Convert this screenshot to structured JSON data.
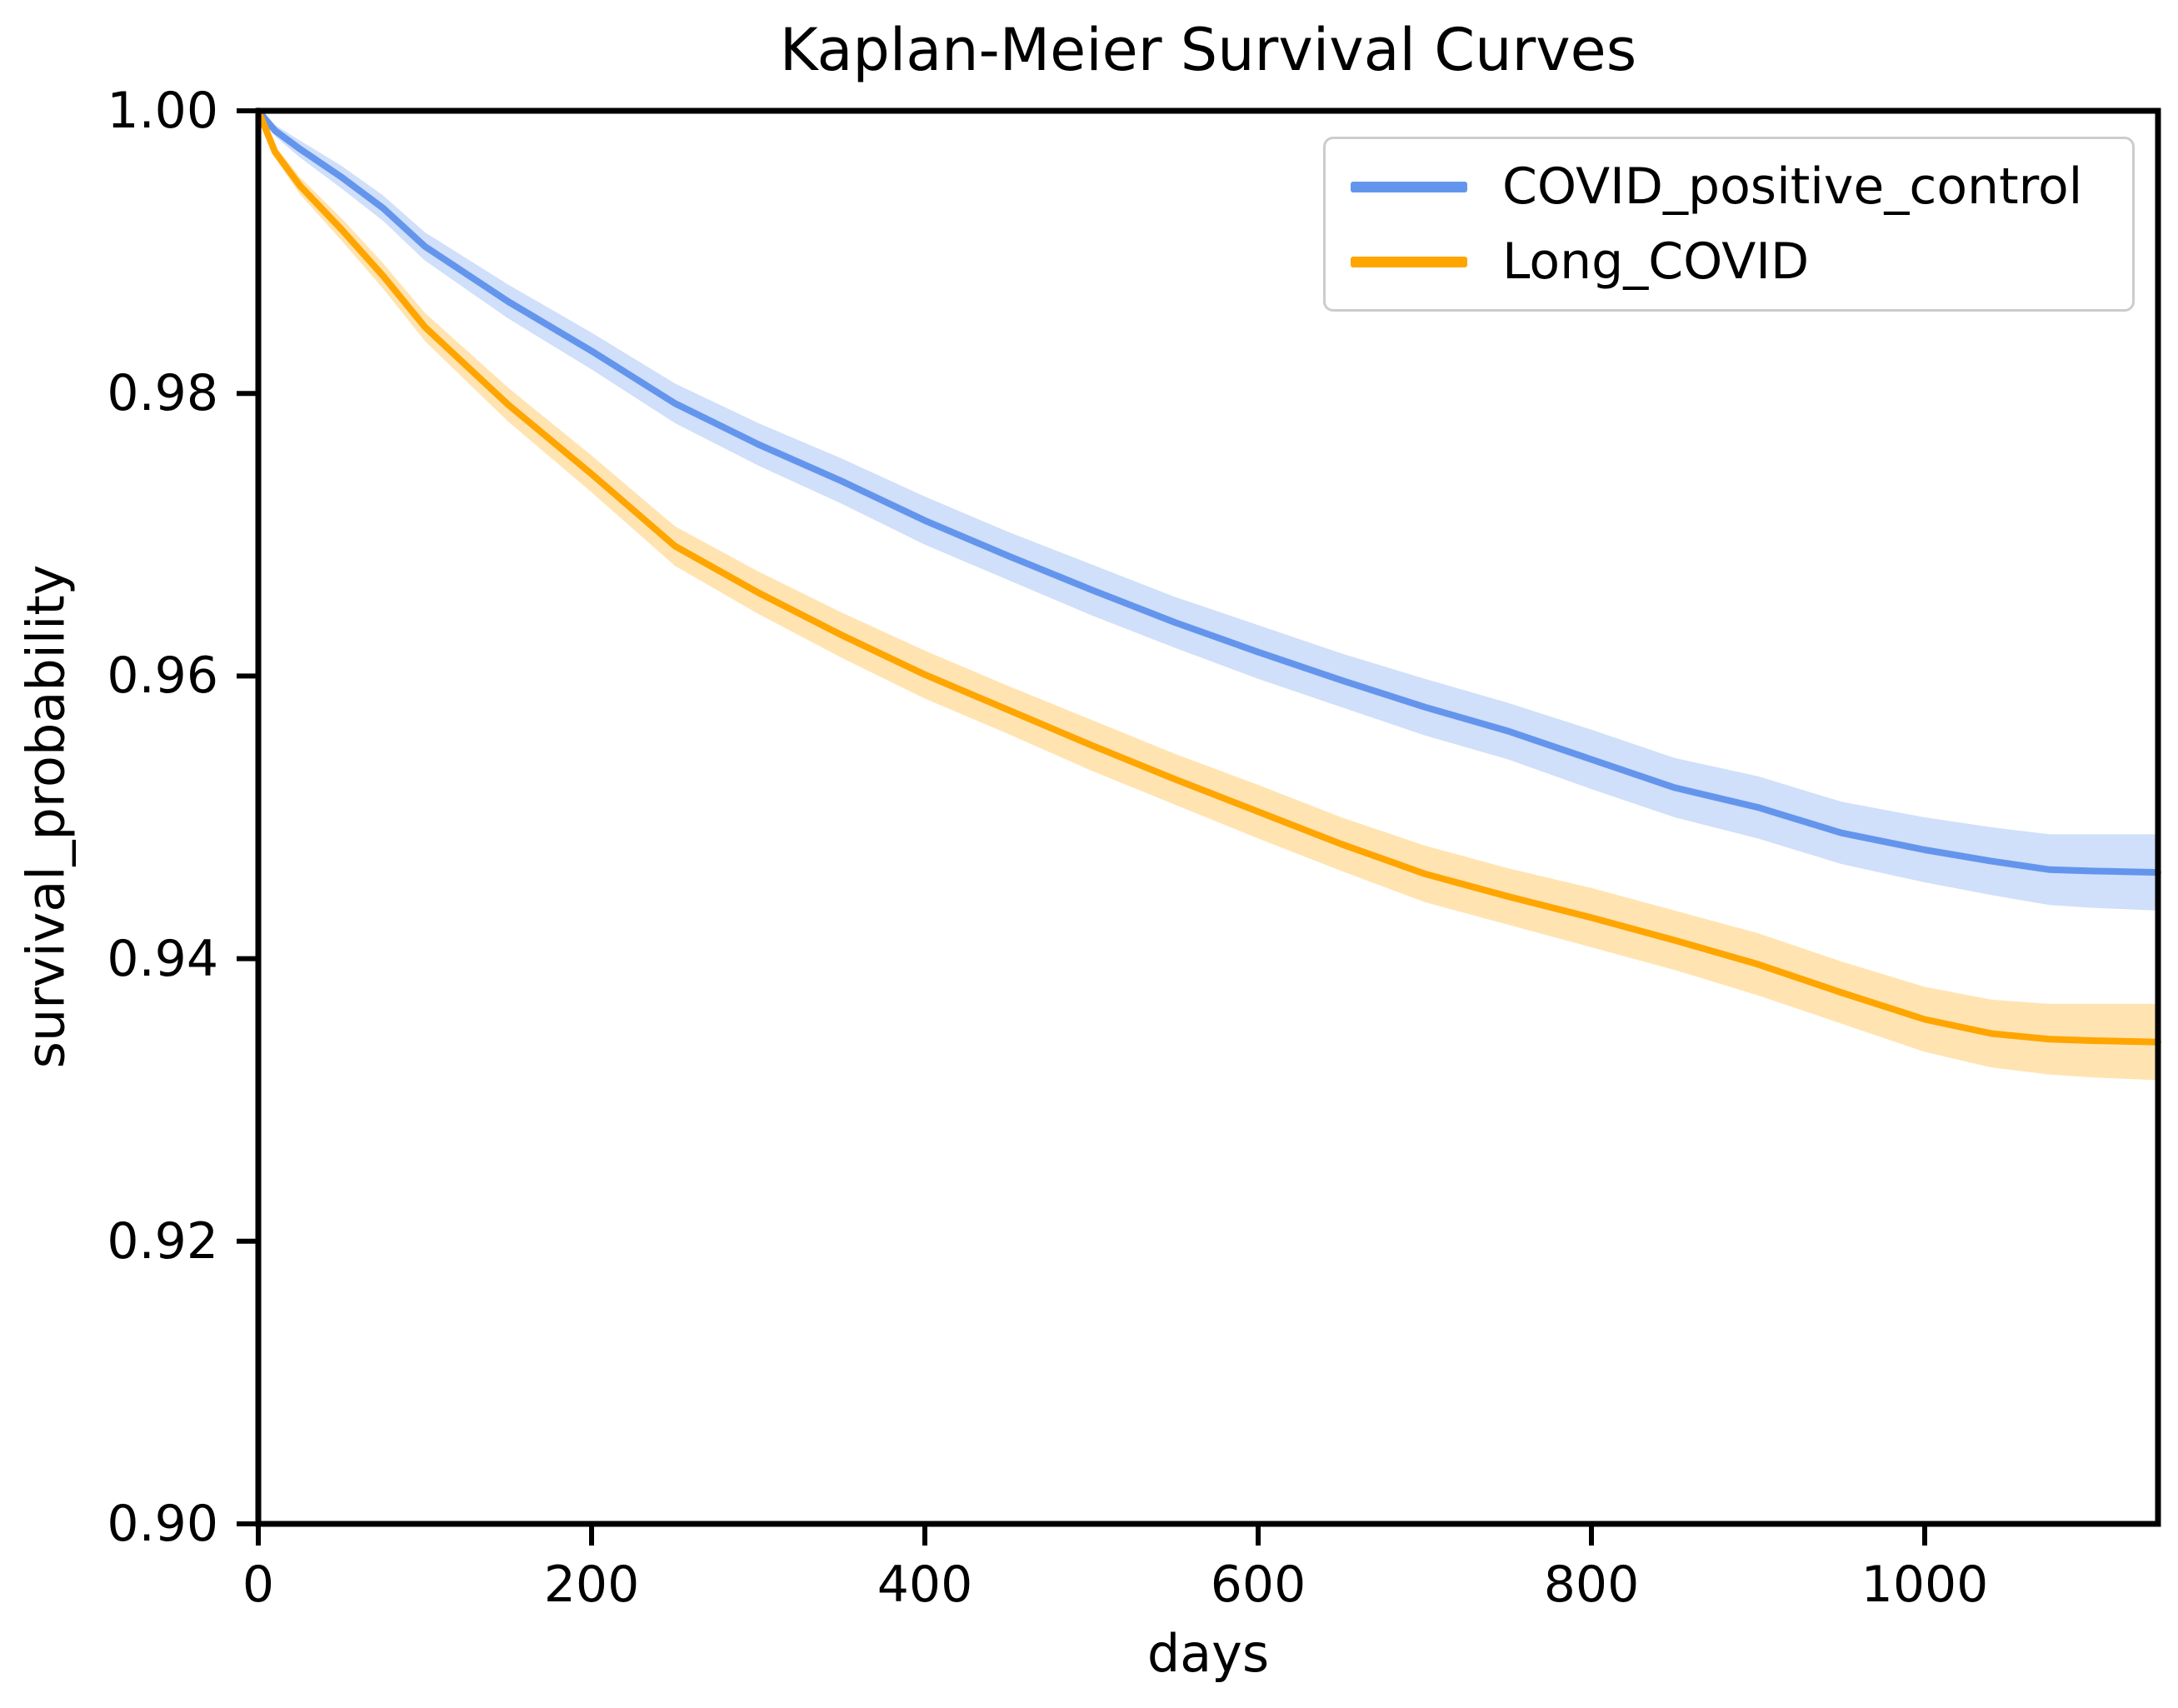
{
  "chart_data": {
    "type": "line",
    "title": "Kaplan-Meier Survival Curves",
    "xlabel": "days",
    "ylabel": "survival_probability",
    "xlim": [
      0,
      1140
    ],
    "ylim": [
      0.9,
      1.0
    ],
    "grid": false,
    "legend_position": "upper right",
    "xtick_values": [
      0,
      200,
      400,
      600,
      800,
      1000
    ],
    "xtick_labels": [
      "0",
      "200",
      "400",
      "600",
      "800",
      "1000"
    ],
    "ytick_values": [
      1.0,
      0.98,
      0.96,
      0.94,
      0.92,
      0.9
    ],
    "ytick_labels": [
      "1.00",
      "0.98",
      "0.96",
      "0.94",
      "0.92",
      "0.90"
    ],
    "axis_color": "#000000",
    "series": [
      {
        "name": "COVID_positive_control",
        "color": "#6495ED",
        "band_alpha": 0.3,
        "x": [
          0,
          10,
          25,
          50,
          75,
          100,
          150,
          200,
          250,
          300,
          350,
          400,
          450,
          500,
          550,
          600,
          650,
          700,
          750,
          800,
          850,
          900,
          950,
          1000,
          1040,
          1075,
          1100,
          1140
        ],
        "y": [
          1.0,
          0.9986,
          0.9973,
          0.9953,
          0.9931,
          0.9904,
          0.9865,
          0.983,
          0.9793,
          0.9764,
          0.9738,
          0.971,
          0.9685,
          0.9661,
          0.9638,
          0.9617,
          0.9597,
          0.9578,
          0.9561,
          0.9541,
          0.9521,
          0.9507,
          0.9489,
          0.9477,
          0.9469,
          0.9463,
          0.9462,
          0.9461
        ],
        "ci": [
          0.0002,
          0.0004,
          0.0006,
          0.0008,
          0.0009,
          0.001,
          0.0012,
          0.0013,
          0.0014,
          0.0015,
          0.0016,
          0.0017,
          0.0017,
          0.0018,
          0.0018,
          0.0019,
          0.0019,
          0.002,
          0.002,
          0.0021,
          0.0021,
          0.0022,
          0.0022,
          0.0023,
          0.0024,
          0.0025,
          0.0026,
          0.0027
        ]
      },
      {
        "name": "Long_COVID",
        "color": "#FFA500",
        "band_alpha": 0.3,
        "x": [
          0,
          10,
          25,
          50,
          75,
          100,
          150,
          200,
          250,
          300,
          350,
          400,
          450,
          500,
          550,
          600,
          650,
          700,
          750,
          800,
          850,
          900,
          950,
          1000,
          1040,
          1075,
          1100,
          1140
        ],
        "y": [
          1.0,
          0.9971,
          0.9947,
          0.9916,
          0.9883,
          0.9847,
          0.9792,
          0.9743,
          0.9692,
          0.9659,
          0.9629,
          0.9601,
          0.9576,
          0.9551,
          0.9527,
          0.9504,
          0.9481,
          0.946,
          0.9444,
          0.9429,
          0.9413,
          0.9396,
          0.9376,
          0.9357,
          0.9347,
          0.9343,
          0.9342,
          0.9341
        ],
        "ci": [
          0.0002,
          0.0004,
          0.0006,
          0.0008,
          0.0009,
          0.001,
          0.0012,
          0.0013,
          0.0014,
          0.0015,
          0.0016,
          0.0017,
          0.0017,
          0.0018,
          0.0018,
          0.0019,
          0.0019,
          0.002,
          0.002,
          0.0021,
          0.0021,
          0.0022,
          0.0022,
          0.0023,
          0.0024,
          0.0025,
          0.0026,
          0.0027
        ]
      }
    ]
  }
}
